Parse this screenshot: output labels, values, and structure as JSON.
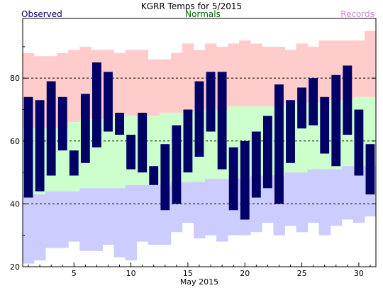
{
  "chart_data": {
    "type": "bar",
    "title": "KGRR Temps for 5/2015",
    "xlabel": "May 2015",
    "ylabel": "",
    "xlim": [
      0.5,
      31.5
    ],
    "ylim": [
      20,
      99
    ],
    "x_ticks": [
      5,
      10,
      15,
      20,
      25,
      30
    ],
    "y_ticks": [
      20,
      40,
      60,
      80
    ],
    "dashed_lines": [
      40,
      60,
      80
    ],
    "legend": {
      "observed": "Observed",
      "normals": "Normals",
      "records": "Records"
    },
    "colors": {
      "observed": "#000066",
      "normals": "#ccffcc",
      "records_high": "#ffcccc",
      "records_low": "#ccccff",
      "legend_observed": "#000066",
      "legend_normals": "#006600",
      "legend_records": "#cc88cc"
    },
    "days": [
      1,
      2,
      3,
      4,
      5,
      6,
      7,
      8,
      9,
      10,
      11,
      12,
      13,
      14,
      15,
      16,
      17,
      18,
      19,
      20,
      21,
      22,
      23,
      24,
      25,
      26,
      27,
      28,
      29,
      30,
      31
    ],
    "series": [
      {
        "name": "Observed",
        "key": "observed",
        "high": [
          74,
          73,
          79,
          74,
          57,
          75,
          85,
          82,
          69,
          62,
          69,
          52,
          59,
          65,
          70,
          79,
          82,
          82,
          58,
          60,
          63,
          68,
          78,
          73,
          77,
          80,
          74,
          81,
          84,
          70,
          59
        ],
        "low": [
          42,
          44,
          49,
          57,
          49,
          53,
          58,
          63,
          62,
          51,
          50,
          46,
          38,
          40,
          50,
          55,
          63,
          51,
          38,
          35,
          42,
          45,
          40,
          53,
          64,
          65,
          56,
          52,
          62,
          49,
          43
        ]
      },
      {
        "name": "Normals",
        "key": "normals",
        "high": [
          64,
          64,
          64,
          64,
          66,
          67,
          67,
          67,
          68,
          68,
          68,
          68,
          69,
          69,
          69,
          70,
          70,
          70,
          71,
          71,
          71,
          71,
          71,
          72,
          72,
          72,
          72,
          73,
          73,
          74,
          74
        ],
        "low": [
          43,
          43,
          44,
          44,
          44,
          45,
          45,
          45,
          45,
          46,
          46,
          46,
          46,
          47,
          47,
          47,
          48,
          48,
          48,
          48,
          49,
          49,
          49,
          50,
          50,
          51,
          51,
          51,
          52,
          52,
          52
        ]
      },
      {
        "name": "Records",
        "key": "records",
        "high": [
          88,
          87,
          87,
          88,
          89,
          90,
          89,
          89,
          88,
          89,
          89,
          86,
          86,
          88,
          91,
          89,
          91,
          90,
          91,
          92,
          91,
          90,
          90,
          89,
          91,
          90,
          92,
          92,
          92,
          92,
          95
        ],
        "low": [
          21,
          22,
          26,
          26,
          28,
          25,
          25,
          27,
          23,
          22,
          28,
          27,
          27,
          31,
          34,
          29,
          30,
          28,
          30,
          30,
          31,
          34,
          30,
          33,
          31,
          34,
          30,
          33,
          35,
          34,
          36
        ]
      }
    ]
  }
}
